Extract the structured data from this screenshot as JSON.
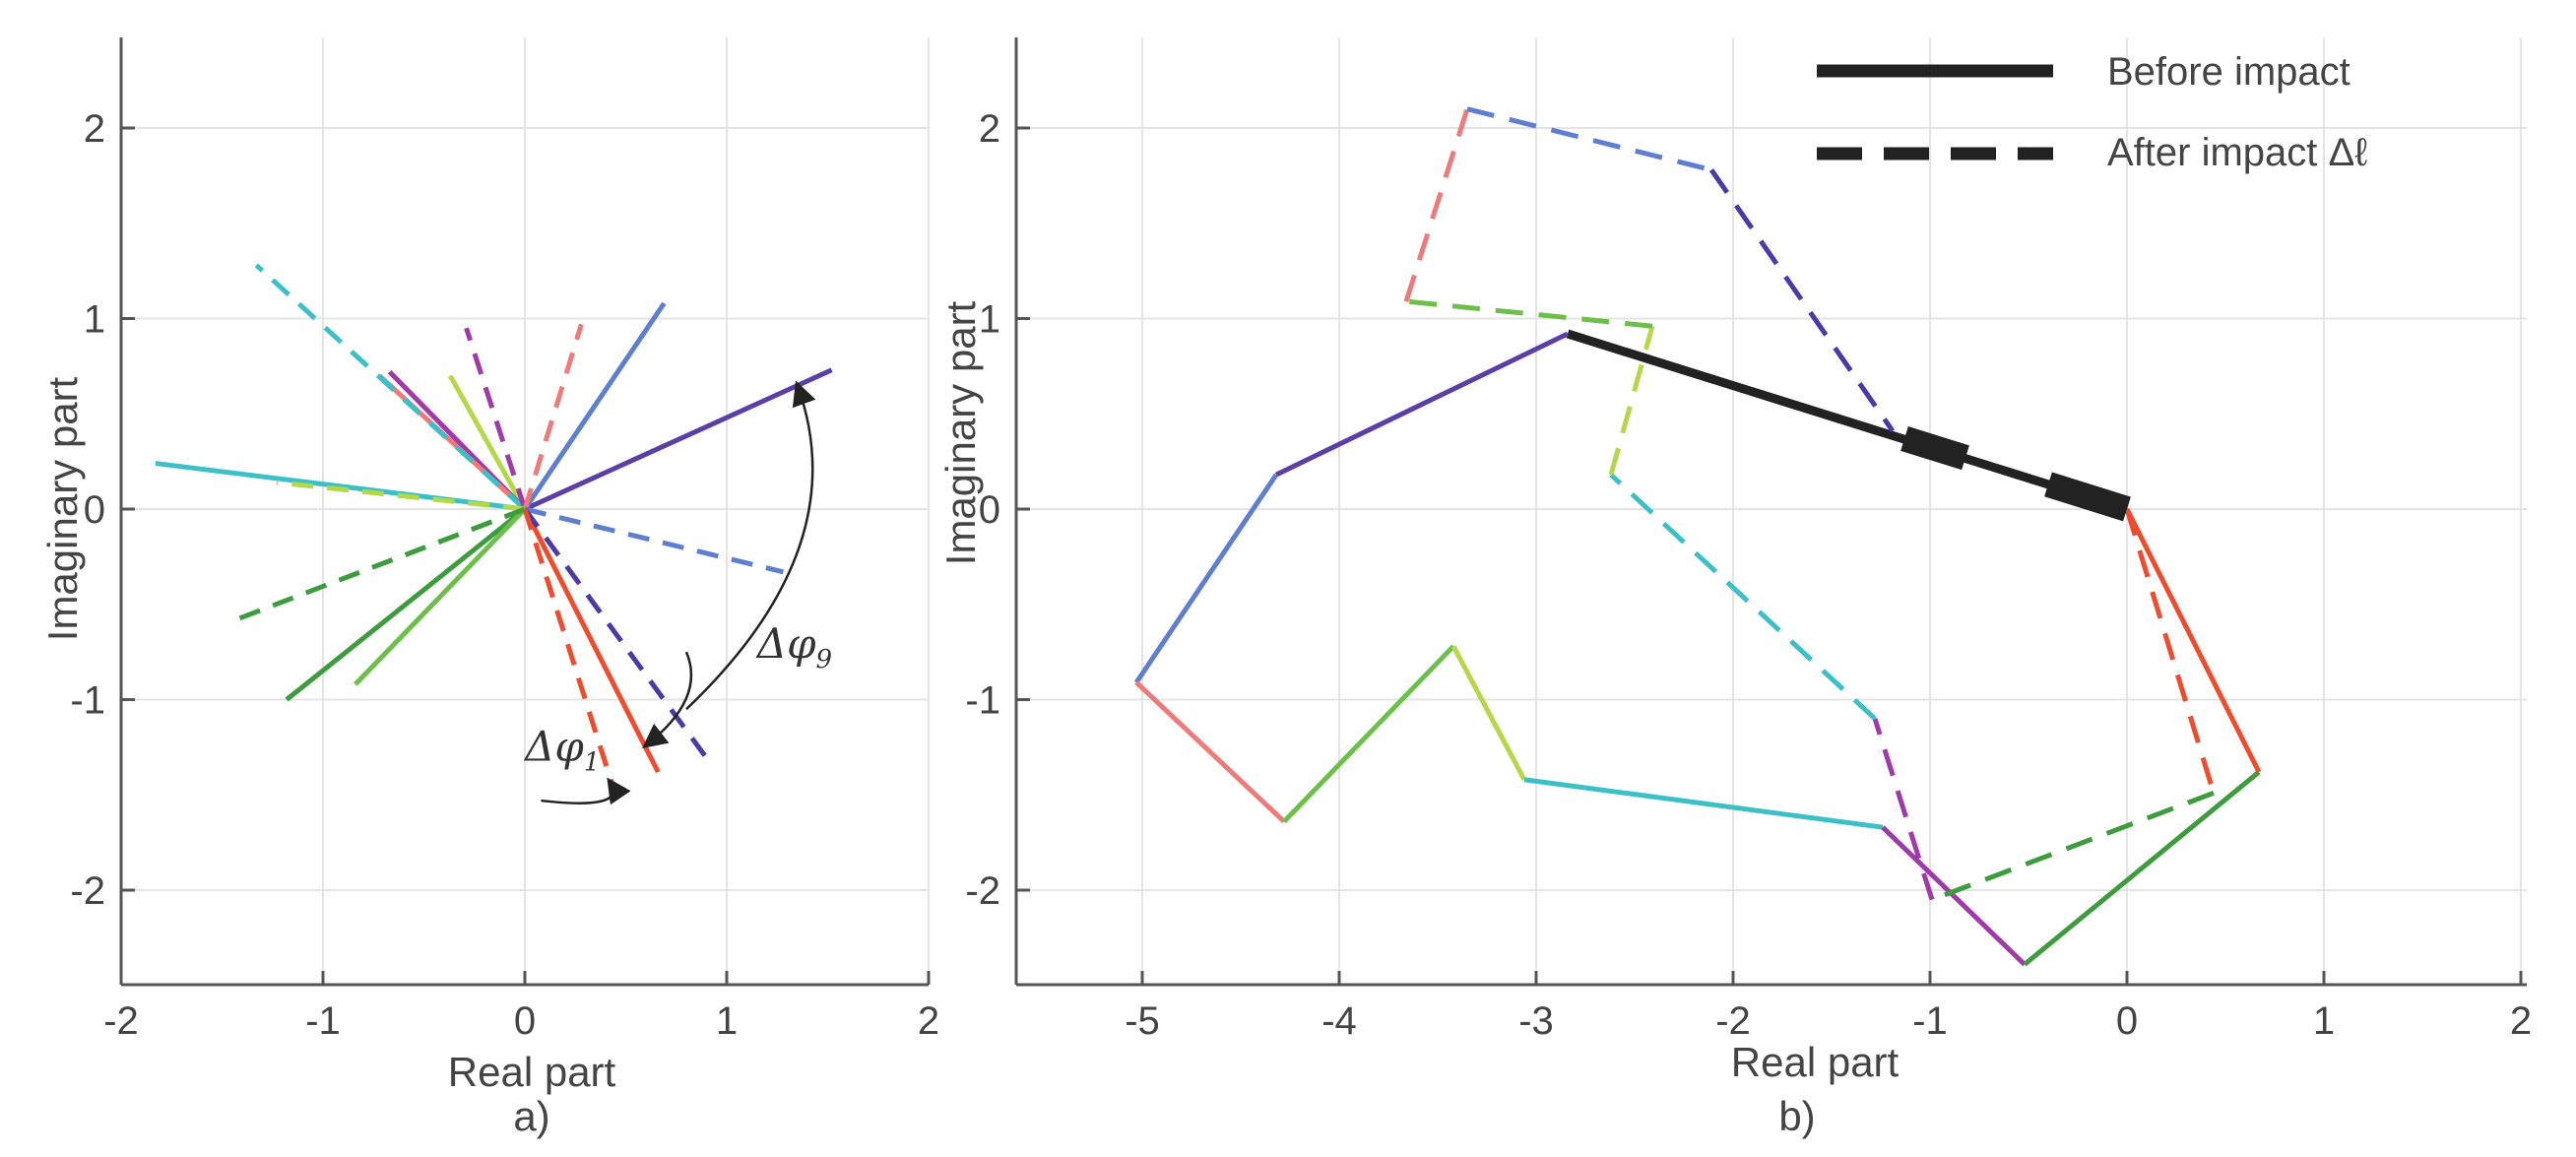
{
  "chart_data": [
    {
      "type": "line",
      "caption": "a)",
      "xlabel": "Real part",
      "ylabel": "Imaginary part",
      "xlim": [
        -2,
        2
      ],
      "ylim": [
        -2.5,
        2.5
      ],
      "xticks": [
        "-2",
        "-1",
        "0",
        "1",
        "2"
      ],
      "yticks": [
        "-2",
        "-1",
        "0",
        "1",
        "2"
      ],
      "grid": true,
      "series": [
        {
          "name": "solid-purple",
          "style": "solid",
          "color": "#5b3fa6",
          "x": [
            0,
            1.52
          ],
          "y": [
            0,
            0.73
          ]
        },
        {
          "name": "solid-blue",
          "style": "solid",
          "color": "#5e7fcf",
          "x": [
            0,
            0.69
          ],
          "y": [
            0,
            1.08
          ]
        },
        {
          "name": "solid-cyan",
          "style": "solid",
          "color": "#3cc0c8",
          "x": [
            0,
            -1.83
          ],
          "y": [
            0,
            0.24
          ]
        },
        {
          "name": "solid-lime",
          "style": "solid",
          "color": "#b3d84a",
          "x": [
            0,
            -0.37
          ],
          "y": [
            0,
            0.7
          ]
        },
        {
          "name": "solid-magenta",
          "style": "solid",
          "color": "#a03aa8",
          "x": [
            0,
            -0.67
          ],
          "y": [
            0,
            0.72
          ]
        },
        {
          "name": "solid-pink",
          "style": "solid",
          "color": "#ef7a7a",
          "x": [
            0,
            -0.72
          ],
          "y": [
            0,
            0.7
          ]
        },
        {
          "name": "solid-green-dark",
          "style": "solid",
          "color": "#3e9c3e",
          "x": [
            0,
            -1.18
          ],
          "y": [
            0,
            -1.0
          ]
        },
        {
          "name": "solid-green-light",
          "style": "solid",
          "color": "#6cc04a",
          "x": [
            0,
            -0.84
          ],
          "y": [
            0,
            -0.92
          ]
        },
        {
          "name": "solid-red",
          "style": "solid",
          "color": "#ee4c2c",
          "x": [
            0,
            0.66
          ],
          "y": [
            0,
            -1.38
          ]
        },
        {
          "name": "dashed-cyan",
          "style": "dashed",
          "color": "#3cc0c8",
          "x": [
            0,
            -1.33
          ],
          "y": [
            0,
            1.28
          ]
        },
        {
          "name": "dashed-magenta",
          "style": "dashed",
          "color": "#a03aa8",
          "x": [
            0,
            -0.29
          ],
          "y": [
            0,
            0.95
          ]
        },
        {
          "name": "dashed-pink",
          "style": "dashed",
          "color": "#ef7a7a",
          "x": [
            0,
            0.28
          ],
          "y": [
            0,
            0.97
          ]
        },
        {
          "name": "dashed-lime",
          "style": "dashed",
          "color": "#b3d84a",
          "x": [
            0,
            -1.23
          ],
          "y": [
            0,
            0.14
          ]
        },
        {
          "name": "dashed-green",
          "style": "dashed",
          "color": "#3e9c3e",
          "x": [
            0,
            -1.43
          ],
          "y": [
            0,
            -0.58
          ]
        },
        {
          "name": "dashed-blue",
          "style": "dashed",
          "color": "#5e7fcf",
          "x": [
            0,
            1.28
          ],
          "y": [
            0,
            -0.33
          ]
        },
        {
          "name": "dashed-purple",
          "style": "dashed",
          "color": "#4a3aa8",
          "x": [
            0,
            0.93
          ],
          "y": [
            0,
            -1.35
          ]
        },
        {
          "name": "dashed-red",
          "style": "dashed",
          "color": "#ee4c2c",
          "x": [
            0,
            0.44
          ],
          "y": [
            0,
            -1.47
          ]
        }
      ],
      "annotations": [
        {
          "label": "Δφ",
          "subscript": "9",
          "text_at": [
            1.15,
            -0.78
          ],
          "arc_from": [
            0.8,
            -1.05
          ],
          "arc_to": [
            1.35,
            0.65
          ]
        },
        {
          "label": "Δφ",
          "subscript": "1",
          "text_at": [
            0.0,
            -1.32
          ],
          "arc_from": [
            0.08,
            -1.53
          ],
          "arc_to": [
            0.42,
            -1.43
          ]
        },
        {
          "arc_from": [
            0.8,
            -0.75
          ],
          "arc_to": [
            0.6,
            -1.24
          ]
        }
      ]
    },
    {
      "type": "line",
      "caption": "b)",
      "xlabel": "Real part",
      "ylabel": "Imaginary part",
      "xlim": [
        -5.5,
        2
      ],
      "ylim": [
        -2.5,
        2.5
      ],
      "xticks": [
        "-5",
        "-4",
        "-3",
        "-2",
        "-1",
        "0",
        "1",
        "2"
      ],
      "yticks": [
        "-2",
        "-1",
        "0",
        "1",
        "2"
      ],
      "grid": true,
      "legend": {
        "position": "top-right",
        "entries": [
          "Before impact",
          "After impact Δℓ"
        ]
      },
      "series": [
        {
          "name": "before-black",
          "style": "solid",
          "color": "#222222",
          "x": [
            0,
            -2.84
          ],
          "y": [
            0,
            0.92
          ]
        },
        {
          "name": "before-purple",
          "style": "solid",
          "color": "#5b3fa6",
          "x": [
            -2.84,
            -4.32
          ],
          "y": [
            0.92,
            0.18
          ]
        },
        {
          "name": "before-blue",
          "style": "solid",
          "color": "#5e7fcf",
          "x": [
            -4.32,
            -5.03
          ],
          "y": [
            0.18,
            -0.91
          ]
        },
        {
          "name": "before-pink",
          "style": "solid",
          "color": "#ef7a7a",
          "x": [
            -5.03,
            -4.28
          ],
          "y": [
            -0.91,
            -1.64
          ]
        },
        {
          "name": "before-green-light",
          "style": "solid",
          "color": "#6cc04a",
          "x": [
            -4.28,
            -3.42
          ],
          "y": [
            -1.64,
            -0.72
          ]
        },
        {
          "name": "before-lime",
          "style": "solid",
          "color": "#b3d84a",
          "x": [
            -3.42,
            -3.06
          ],
          "y": [
            -0.72,
            -1.42
          ]
        },
        {
          "name": "before-cyan",
          "style": "solid",
          "color": "#3cc0c8",
          "x": [
            -3.06,
            -1.24
          ],
          "y": [
            -1.42,
            -1.67
          ]
        },
        {
          "name": "before-magenta",
          "style": "solid",
          "color": "#a03aa8",
          "x": [
            -1.24,
            -0.52
          ],
          "y": [
            -1.67,
            -2.39
          ]
        },
        {
          "name": "before-green-dark",
          "style": "solid",
          "color": "#3e9c3e",
          "x": [
            -0.52,
            0.67
          ],
          "y": [
            -2.39,
            -1.38
          ]
        },
        {
          "name": "before-red",
          "style": "solid",
          "color": "#ee4c2c",
          "x": [
            0.67,
            0
          ],
          "y": [
            -1.38,
            0
          ]
        },
        {
          "name": "after-red",
          "style": "dashed",
          "color": "#ee4c2c",
          "x": [
            0,
            0.44
          ],
          "y": [
            0,
            -1.49
          ]
        },
        {
          "name": "after-green",
          "style": "dashed",
          "color": "#3e9c3e",
          "x": [
            0.44,
            -0.99
          ],
          "y": [
            -1.49,
            -2.05
          ]
        },
        {
          "name": "after-magenta",
          "style": "dashed",
          "color": "#a03aa8",
          "x": [
            -0.99,
            -1.28
          ],
          "y": [
            -2.05,
            -1.1
          ]
        },
        {
          "name": "after-cyan",
          "style": "dashed",
          "color": "#3cc0c8",
          "x": [
            -1.28,
            -2.62
          ],
          "y": [
            -1.1,
            0.18
          ]
        },
        {
          "name": "after-lime",
          "style": "dashed",
          "color": "#b3d84a",
          "x": [
            -2.62,
            -2.41
          ],
          "y": [
            0.18,
            0.96
          ]
        },
        {
          "name": "after-green-light",
          "style": "dashed",
          "color": "#6cc04a",
          "x": [
            -2.41,
            -3.66
          ],
          "y": [
            0.96,
            1.09
          ]
        },
        {
          "name": "after-pink",
          "style": "dashed",
          "color": "#ef7a7a",
          "x": [
            -3.66,
            -3.35
          ],
          "y": [
            1.09,
            2.1
          ]
        },
        {
          "name": "after-blue",
          "style": "dashed",
          "color": "#5e7fcf",
          "x": [
            -3.35,
            -2.11
          ],
          "y": [
            2.1,
            1.78
          ]
        },
        {
          "name": "after-purple",
          "style": "dashed",
          "color": "#4a3aa8",
          "x": [
            -2.11,
            -1.19
          ],
          "y": [
            1.78,
            0.41
          ]
        }
      ],
      "impact_segments": [
        {
          "x": [
            -1.13,
            -0.82
          ],
          "y": [
            0.37,
            0.27
          ]
        },
        {
          "x": [
            -0.4,
            0
          ],
          "y": [
            0.13,
            0
          ]
        }
      ]
    }
  ]
}
